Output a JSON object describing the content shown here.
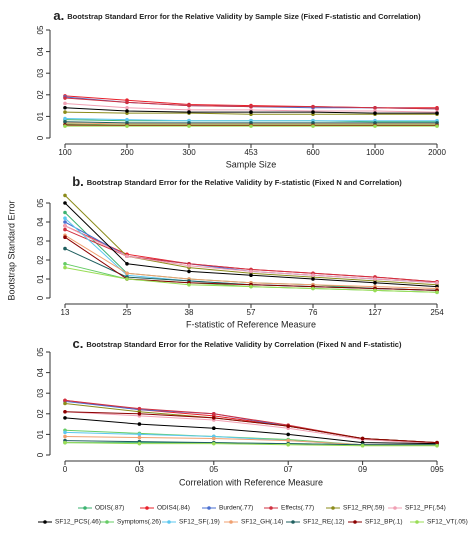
{
  "chart_data": [
    {
      "type": "line",
      "label": "a.",
      "title": "Bootstrap Standard Error for the Relative Validity by Sample Size (Fixed F-statistic and Correlation)",
      "xlabel": "Sample Size",
      "categories": [
        "100",
        "200",
        "300",
        "453",
        "600",
        "1000",
        "2000"
      ],
      "ylim": [
        0,
        0.5
      ],
      "yticks": [
        0,
        {
          "value": 0.1,
          "label": "01"
        },
        {
          "value": 0.2,
          "label": "02"
        },
        {
          "value": 0.3,
          "label": "03"
        },
        {
          "value": 0.4,
          "label": "04"
        },
        {
          "value": 0.5,
          "label": "05"
        }
      ],
      "series": [
        {
          "name": "ODIS(.87)",
          "color": "#3cb371",
          "values": [
            0.085,
            0.08,
            0.08,
            0.08,
            0.08,
            0.075,
            0.075
          ]
        },
        {
          "name": "ODIS4(.84)",
          "color": "#e8202a",
          "values": [
            0.195,
            0.175,
            0.155,
            0.15,
            0.145,
            0.14,
            0.14
          ]
        },
        {
          "name": "Burden(.77)",
          "color": "#4a6fd0",
          "values": [
            0.19,
            0.165,
            0.15,
            0.145,
            0.14,
            0.14,
            0.135
          ]
        },
        {
          "name": "Effects(.77)",
          "color": "#d03040",
          "values": [
            0.185,
            0.165,
            0.15,
            0.145,
            0.145,
            0.14,
            0.135
          ]
        },
        {
          "name": "SF12_RP(.59)",
          "color": "#8b8b1a",
          "values": [
            0.12,
            0.115,
            0.115,
            0.11,
            0.11,
            0.11,
            0.11
          ]
        },
        {
          "name": "SF12_PF(.54)",
          "color": "#f0a0b4",
          "values": [
            0.16,
            0.14,
            0.13,
            0.13,
            0.125,
            0.125,
            0.12
          ]
        },
        {
          "name": "SF12_PCS(.46)",
          "color": "#000000",
          "values": [
            0.14,
            0.125,
            0.12,
            0.12,
            0.12,
            0.115,
            0.115
          ]
        },
        {
          "name": "Symptoms(.26)",
          "color": "#66cc66",
          "values": [
            0.065,
            0.06,
            0.06,
            0.06,
            0.06,
            0.06,
            0.06
          ]
        },
        {
          "name": "SF12_SF(.19)",
          "color": "#5cc8f0",
          "values": [
            0.09,
            0.085,
            0.08,
            0.08,
            0.08,
            0.08,
            0.08
          ]
        },
        {
          "name": "SF12_GH(.14)",
          "color": "#f0a070",
          "values": [
            0.07,
            0.065,
            0.065,
            0.065,
            0.065,
            0.065,
            0.065
          ]
        },
        {
          "name": "SF12_RE(.12)",
          "color": "#1f5f5f",
          "values": [
            0.075,
            0.07,
            0.07,
            0.07,
            0.07,
            0.07,
            0.07
          ]
        },
        {
          "name": "SF12_BP(.1)",
          "color": "#8b0000",
          "values": [
            0.06,
            0.058,
            0.058,
            0.058,
            0.058,
            0.058,
            0.058
          ]
        },
        {
          "name": "SF12_VT(.05)",
          "color": "#99dd55",
          "values": [
            0.055,
            0.055,
            0.055,
            0.055,
            0.055,
            0.055,
            0.055
          ]
        }
      ]
    },
    {
      "type": "line",
      "label": "b.",
      "title": "Bootstrap Standard Error for the Relative Validity by F-statistic (Fixed N and Correlation)",
      "xlabel": "F-statistic of Reference Measure",
      "ylabel": "Bootstrap Standard Error",
      "categories": [
        "13",
        "25",
        "38",
        "57",
        "76",
        "127",
        "254"
      ],
      "ylim": [
        0,
        0.5
      ],
      "yticks": [
        0,
        {
          "value": 0.1,
          "label": "01"
        },
        {
          "value": 0.2,
          "label": "02"
        },
        {
          "value": 0.3,
          "label": "03"
        },
        {
          "value": 0.4,
          "label": "04"
        },
        {
          "value": 0.5,
          "label": "05"
        }
      ],
      "series": [
        {
          "values": [
            0.45,
            0.13,
            0.1,
            0.08,
            0.07,
            0.05,
            0.04
          ]
        },
        {
          "values": [
            0.38,
            0.23,
            0.18,
            0.15,
            0.13,
            0.11,
            0.085
          ]
        },
        {
          "values": [
            0.4,
            0.22,
            0.18,
            0.14,
            0.12,
            0.1,
            0.08
          ]
        },
        {
          "values": [
            0.36,
            0.22,
            0.18,
            0.15,
            0.13,
            0.11,
            0.085
          ]
        },
        {
          "values": [
            0.54,
            0.22,
            0.16,
            0.13,
            0.11,
            0.09,
            0.07
          ]
        },
        {
          "values": [
            0.38,
            0.22,
            0.17,
            0.14,
            0.12,
            0.1,
            0.08
          ]
        },
        {
          "values": [
            0.5,
            0.18,
            0.14,
            0.12,
            0.1,
            0.08,
            0.06
          ]
        },
        {
          "values": [
            0.18,
            0.1,
            0.08,
            0.06,
            0.05,
            0.04,
            0.03
          ]
        },
        {
          "values": [
            0.42,
            0.12,
            0.09,
            0.07,
            0.06,
            0.05,
            0.04
          ]
        },
        {
          "values": [
            0.33,
            0.13,
            0.1,
            0.08,
            0.07,
            0.06,
            0.05
          ]
        },
        {
          "values": [
            0.26,
            0.11,
            0.09,
            0.07,
            0.06,
            0.05,
            0.04
          ]
        },
        {
          "values": [
            0.32,
            0.1,
            0.08,
            0.07,
            0.06,
            0.05,
            0.04
          ]
        },
        {
          "values": [
            0.16,
            0.1,
            0.07,
            0.06,
            0.05,
            0.04,
            0.03
          ]
        }
      ]
    },
    {
      "type": "line",
      "label": "c.",
      "title": "Bootstrap Standard Error for the Relative Validity by Correlation (Fixed N and F-statistic)",
      "xlabel": "Correlation with Reference Measure",
      "categories": [
        "0",
        "03",
        "05",
        "07",
        "09",
        "095"
      ],
      "ylim": [
        0,
        0.5
      ],
      "yticks": [
        0,
        {
          "value": 0.1,
          "label": "01"
        },
        {
          "value": 0.2,
          "label": "02"
        },
        {
          "value": 0.3,
          "label": "03"
        },
        {
          "value": 0.4,
          "label": "04"
        },
        {
          "value": 0.5,
          "label": "05"
        }
      ],
      "series": [
        {
          "values": [
            0.06,
            0.06,
            0.06,
            0.055,
            0.05,
            0.05
          ]
        },
        {
          "values": [
            0.265,
            0.22,
            0.19,
            0.14,
            0.08,
            0.06
          ]
        },
        {
          "values": [
            0.26,
            0.22,
            0.2,
            0.14,
            0.08,
            0.06
          ]
        },
        {
          "values": [
            0.265,
            0.225,
            0.2,
            0.145,
            0.08,
            0.06
          ]
        },
        {
          "values": [
            0.25,
            0.21,
            0.18,
            0.14,
            0.08,
            0.06
          ]
        },
        {
          "values": [
            0.21,
            0.19,
            0.17,
            0.13,
            0.075,
            0.055
          ]
        },
        {
          "values": [
            0.18,
            0.15,
            0.13,
            0.1,
            0.06,
            0.055
          ]
        },
        {
          "values": [
            0.12,
            0.105,
            0.09,
            0.075,
            0.05,
            0.05
          ]
        },
        {
          "values": [
            0.11,
            0.1,
            0.09,
            0.07,
            0.05,
            0.05
          ]
        },
        {
          "values": [
            0.09,
            0.085,
            0.08,
            0.07,
            0.05,
            0.05
          ]
        },
        {
          "values": [
            0.07,
            0.065,
            0.06,
            0.055,
            0.05,
            0.05
          ]
        },
        {
          "values": [
            0.21,
            0.2,
            0.18,
            0.14,
            0.08,
            0.06
          ]
        },
        {
          "values": [
            0.06,
            0.055,
            0.055,
            0.05,
            0.045,
            0.045
          ]
        }
      ]
    }
  ]
}
